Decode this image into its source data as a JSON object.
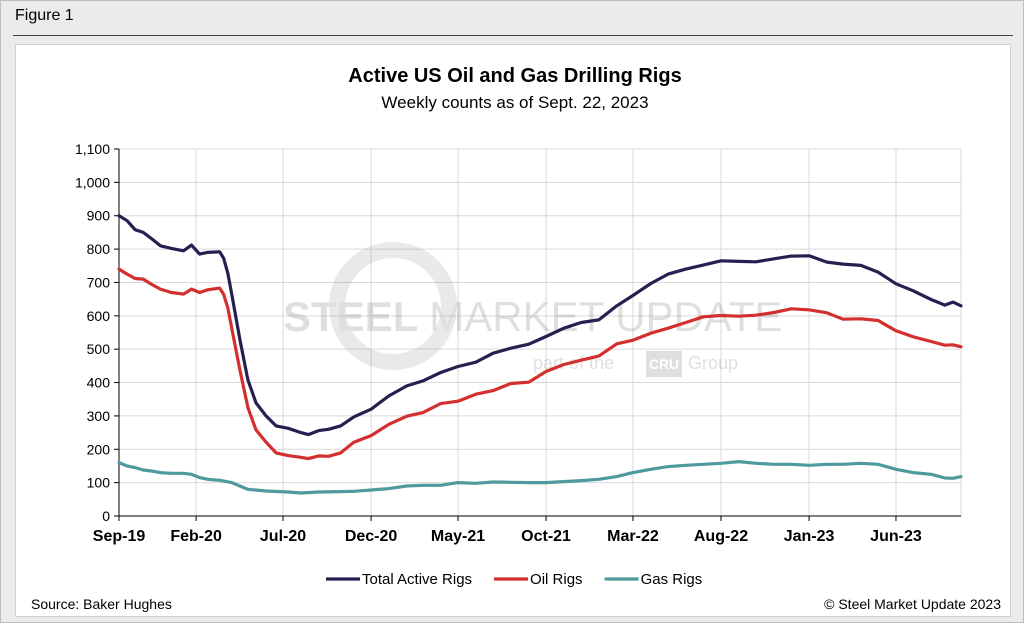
{
  "figure_label": "Figure 1",
  "source": "Source: Baker Hughes",
  "copyright": "© Steel Market Update 2023",
  "watermark": {
    "brand": "STEEL MARKET UPDATE",
    "brand_bold": "STEEL",
    "brand_light": "MARKET UPDATE",
    "sub_pre": "part of the",
    "sub_logo": "CRU",
    "sub_post": "Group"
  },
  "colors": {
    "total": "#252050",
    "oil": "#d32f2f",
    "gas": "#4f9a9e",
    "grid": "#d9d9d9",
    "axis": "#000000"
  },
  "chart_data": {
    "type": "line",
    "title": "Active US Oil and Gas Drilling Rigs",
    "subtitle": "Weekly counts as of Sept. 22, 2023",
    "xlabel": "",
    "ylabel": "",
    "ylim": [
      0,
      1100
    ],
    "yticks": [
      0,
      100,
      200,
      300,
      400,
      500,
      600,
      700,
      800,
      900,
      1000,
      1100
    ],
    "ytick_labels": [
      "0",
      "100",
      "200",
      "300",
      "400",
      "500",
      "600",
      "700",
      "800",
      "900",
      "1,000",
      "1,100"
    ],
    "xlim": [
      "2019-09-20",
      "2023-09-22"
    ],
    "xticks": [
      {
        "date": "2019-09-01",
        "label": "Sep-19"
      },
      {
        "date": "2020-02-01",
        "label": "Feb-20"
      },
      {
        "date": "2020-07-01",
        "label": "Jul-20"
      },
      {
        "date": "2020-12-01",
        "label": "Dec-20"
      },
      {
        "date": "2021-05-01",
        "label": "May-21"
      },
      {
        "date": "2021-10-01",
        "label": "Oct-21"
      },
      {
        "date": "2022-03-01",
        "label": "Mar-22"
      },
      {
        "date": "2022-08-01",
        "label": "Aug-22"
      },
      {
        "date": "2023-01-01",
        "label": "Jan-23"
      },
      {
        "date": "2023-06-01",
        "label": "Jun-23"
      }
    ],
    "grid": true,
    "legend_position": "bottom",
    "series": [
      {
        "name": "Total Active Rigs",
        "color": "#252050",
        "points": [
          [
            "2019-09-20",
            900
          ],
          [
            "2019-10-04",
            885
          ],
          [
            "2019-10-18",
            858
          ],
          [
            "2019-11-01",
            850
          ],
          [
            "2019-11-15",
            832
          ],
          [
            "2019-12-01",
            810
          ],
          [
            "2019-12-20",
            802
          ],
          [
            "2020-01-10",
            795
          ],
          [
            "2020-01-24",
            812
          ],
          [
            "2020-02-07",
            785
          ],
          [
            "2020-02-21",
            790
          ],
          [
            "2020-03-13",
            792
          ],
          [
            "2020-03-20",
            772
          ],
          [
            "2020-03-27",
            728
          ],
          [
            "2020-04-03",
            664
          ],
          [
            "2020-04-17",
            529
          ],
          [
            "2020-05-01",
            408
          ],
          [
            "2020-05-15",
            339
          ],
          [
            "2020-06-01",
            301
          ],
          [
            "2020-06-19",
            270
          ],
          [
            "2020-07-10",
            263
          ],
          [
            "2020-08-01",
            250
          ],
          [
            "2020-08-14",
            244
          ],
          [
            "2020-09-01",
            256
          ],
          [
            "2020-09-18",
            260
          ],
          [
            "2020-10-09",
            270
          ],
          [
            "2020-11-01",
            297
          ],
          [
            "2020-12-01",
            320
          ],
          [
            "2021-01-01",
            360
          ],
          [
            "2021-02-01",
            390
          ],
          [
            "2021-03-01",
            405
          ],
          [
            "2021-04-01",
            430
          ],
          [
            "2021-05-01",
            448
          ],
          [
            "2021-06-01",
            461
          ],
          [
            "2021-07-01",
            488
          ],
          [
            "2021-08-01",
            503
          ],
          [
            "2021-09-01",
            515
          ],
          [
            "2021-10-01",
            538
          ],
          [
            "2021-11-01",
            563
          ],
          [
            "2021-12-01",
            580
          ],
          [
            "2022-01-01",
            588
          ],
          [
            "2022-02-01",
            630
          ],
          [
            "2022-03-01",
            661
          ],
          [
            "2022-04-01",
            697
          ],
          [
            "2022-05-01",
            725
          ],
          [
            "2022-06-01",
            740
          ],
          [
            "2022-07-01",
            752
          ],
          [
            "2022-08-01",
            765
          ],
          [
            "2022-09-01",
            763
          ],
          [
            "2022-10-01",
            762
          ],
          [
            "2022-11-01",
            771
          ],
          [
            "2022-12-01",
            779
          ],
          [
            "2023-01-01",
            780
          ],
          [
            "2023-02-01",
            761
          ],
          [
            "2023-03-01",
            755
          ],
          [
            "2023-04-01",
            751
          ],
          [
            "2023-05-01",
            731
          ],
          [
            "2023-06-01",
            696
          ],
          [
            "2023-07-01",
            675
          ],
          [
            "2023-08-01",
            649
          ],
          [
            "2023-08-25",
            632
          ],
          [
            "2023-09-08",
            641
          ],
          [
            "2023-09-22",
            630
          ]
        ]
      },
      {
        "name": "Oil Rigs",
        "color": "#d32f2f",
        "points": [
          [
            "2019-09-20",
            740
          ],
          [
            "2019-10-04",
            725
          ],
          [
            "2019-10-18",
            712
          ],
          [
            "2019-11-01",
            710
          ],
          [
            "2019-11-15",
            695
          ],
          [
            "2019-12-01",
            680
          ],
          [
            "2019-12-20",
            670
          ],
          [
            "2020-01-10",
            665
          ],
          [
            "2020-01-24",
            680
          ],
          [
            "2020-02-07",
            670
          ],
          [
            "2020-02-21",
            678
          ],
          [
            "2020-03-13",
            683
          ],
          [
            "2020-03-20",
            664
          ],
          [
            "2020-03-27",
            624
          ],
          [
            "2020-04-03",
            562
          ],
          [
            "2020-04-17",
            438
          ],
          [
            "2020-05-01",
            325
          ],
          [
            "2020-05-15",
            258
          ],
          [
            "2020-06-01",
            222
          ],
          [
            "2020-06-19",
            189
          ],
          [
            "2020-07-10",
            181
          ],
          [
            "2020-08-01",
            176
          ],
          [
            "2020-08-14",
            172
          ],
          [
            "2020-09-01",
            180
          ],
          [
            "2020-09-18",
            179
          ],
          [
            "2020-10-09",
            189
          ],
          [
            "2020-11-01",
            221
          ],
          [
            "2020-12-01",
            241
          ],
          [
            "2021-01-01",
            275
          ],
          [
            "2021-02-01",
            299
          ],
          [
            "2021-03-01",
            310
          ],
          [
            "2021-04-01",
            337
          ],
          [
            "2021-05-01",
            344
          ],
          [
            "2021-06-01",
            365
          ],
          [
            "2021-07-01",
            376
          ],
          [
            "2021-08-01",
            397
          ],
          [
            "2021-09-01",
            401
          ],
          [
            "2021-10-01",
            433
          ],
          [
            "2021-11-01",
            454
          ],
          [
            "2021-12-01",
            467
          ],
          [
            "2022-01-01",
            480
          ],
          [
            "2022-02-01",
            516
          ],
          [
            "2022-03-01",
            527
          ],
          [
            "2022-04-01",
            548
          ],
          [
            "2022-05-01",
            563
          ],
          [
            "2022-06-01",
            580
          ],
          [
            "2022-07-01",
            597
          ],
          [
            "2022-08-01",
            601
          ],
          [
            "2022-09-01",
            599
          ],
          [
            "2022-10-01",
            602
          ],
          [
            "2022-11-01",
            610
          ],
          [
            "2022-12-01",
            621
          ],
          [
            "2023-01-01",
            618
          ],
          [
            "2023-02-01",
            609
          ],
          [
            "2023-03-01",
            590
          ],
          [
            "2023-04-01",
            591
          ],
          [
            "2023-05-01",
            586
          ],
          [
            "2023-06-01",
            555
          ],
          [
            "2023-07-01",
            537
          ],
          [
            "2023-08-01",
            523
          ],
          [
            "2023-08-25",
            512
          ],
          [
            "2023-09-08",
            513
          ],
          [
            "2023-09-22",
            507
          ]
        ]
      },
      {
        "name": "Gas Rigs",
        "color": "#4f9a9e",
        "points": [
          [
            "2019-09-20",
            160
          ],
          [
            "2019-10-04",
            150
          ],
          [
            "2019-10-18",
            145
          ],
          [
            "2019-11-01",
            138
          ],
          [
            "2019-11-15",
            135
          ],
          [
            "2019-12-01",
            130
          ],
          [
            "2019-12-20",
            128
          ],
          [
            "2020-01-10",
            128
          ],
          [
            "2020-01-24",
            125
          ],
          [
            "2020-02-07",
            115
          ],
          [
            "2020-02-21",
            110
          ],
          [
            "2020-03-13",
            107
          ],
          [
            "2020-04-03",
            100
          ],
          [
            "2020-04-17",
            90
          ],
          [
            "2020-05-01",
            80
          ],
          [
            "2020-06-01",
            75
          ],
          [
            "2020-07-10",
            72
          ],
          [
            "2020-08-01",
            69
          ],
          [
            "2020-09-01",
            72
          ],
          [
            "2020-10-09",
            73
          ],
          [
            "2020-11-01",
            74
          ],
          [
            "2020-12-01",
            78
          ],
          [
            "2021-01-01",
            82
          ],
          [
            "2021-02-01",
            90
          ],
          [
            "2021-03-01",
            92
          ],
          [
            "2021-04-01",
            92
          ],
          [
            "2021-05-01",
            100
          ],
          [
            "2021-06-01",
            98
          ],
          [
            "2021-07-01",
            102
          ],
          [
            "2021-08-01",
            101
          ],
          [
            "2021-09-01",
            100
          ],
          [
            "2021-10-01",
            100
          ],
          [
            "2021-11-01",
            103
          ],
          [
            "2021-12-01",
            106
          ],
          [
            "2022-01-01",
            110
          ],
          [
            "2022-02-01",
            118
          ],
          [
            "2022-03-01",
            130
          ],
          [
            "2022-04-01",
            140
          ],
          [
            "2022-05-01",
            148
          ],
          [
            "2022-06-01",
            152
          ],
          [
            "2022-07-01",
            155
          ],
          [
            "2022-08-01",
            158
          ],
          [
            "2022-09-01",
            163
          ],
          [
            "2022-10-01",
            158
          ],
          [
            "2022-11-01",
            155
          ],
          [
            "2022-12-01",
            155
          ],
          [
            "2023-01-01",
            152
          ],
          [
            "2023-02-01",
            155
          ],
          [
            "2023-03-01",
            155
          ],
          [
            "2023-04-01",
            158
          ],
          [
            "2023-05-01",
            155
          ],
          [
            "2023-06-01",
            140
          ],
          [
            "2023-07-01",
            130
          ],
          [
            "2023-08-01",
            125
          ],
          [
            "2023-08-25",
            114
          ],
          [
            "2023-09-08",
            113
          ],
          [
            "2023-09-22",
            118
          ]
        ]
      }
    ]
  }
}
